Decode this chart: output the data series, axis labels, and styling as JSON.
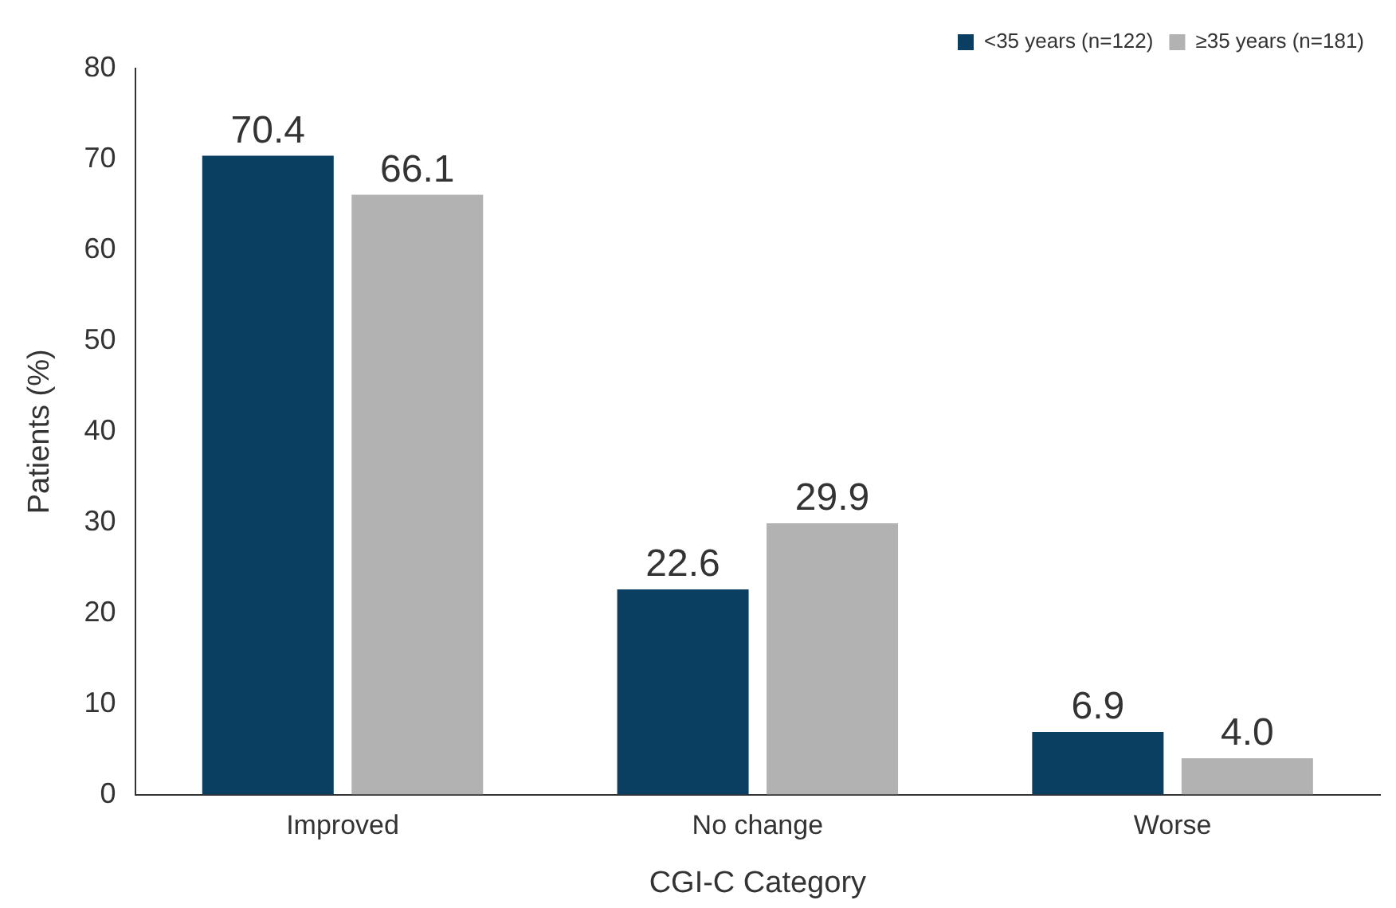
{
  "chart_data": {
    "type": "bar",
    "xlabel": "CGI-C Category",
    "ylabel": "Patients (%)",
    "categories": [
      "Improved",
      "No change",
      "Worse"
    ],
    "series": [
      {
        "name": "<35 years (n=122)",
        "color": "#0b3f61",
        "values": [
          70.4,
          22.6,
          6.9
        ],
        "value_labels": [
          "70.4",
          "22.6",
          "6.9"
        ]
      },
      {
        "name": "≥35 years (n=181)",
        "color": "#b2b2b2",
        "values": [
          66.1,
          29.9,
          4.0
        ],
        "value_labels": [
          "66.1",
          "29.9",
          "4.0"
        ]
      }
    ],
    "ylim": [
      0,
      80
    ],
    "yticks": [
      0,
      10,
      20,
      30,
      40,
      50,
      60,
      70,
      80
    ],
    "grid": false,
    "legend": "top right"
  }
}
